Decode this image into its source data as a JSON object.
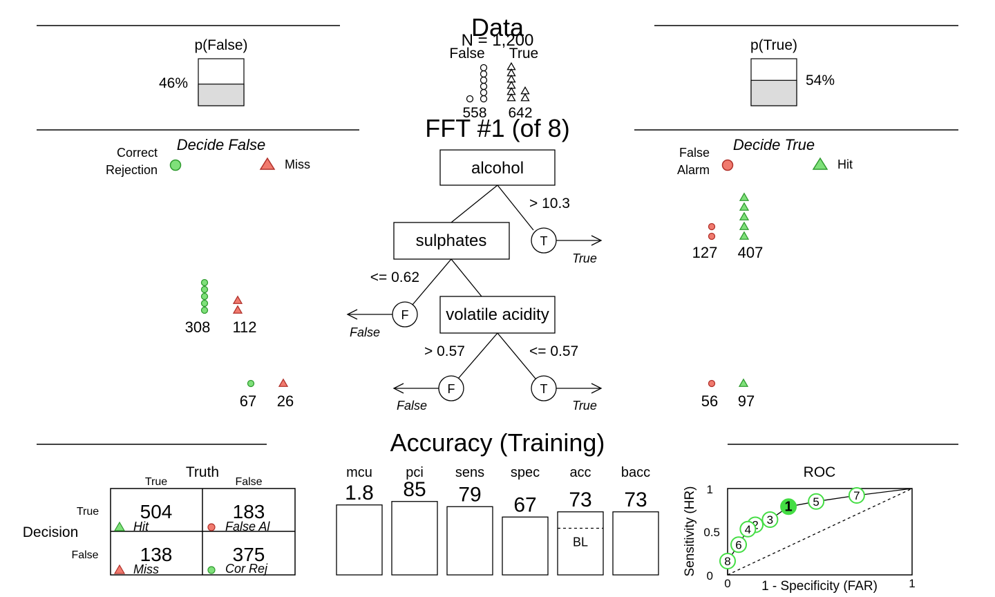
{
  "data_section": {
    "title": "Data",
    "n_label": "N = 1,200",
    "p_false": {
      "label": "p(False)",
      "value_label": "46%",
      "fraction": 0.46
    },
    "p_true": {
      "label": "p(True)",
      "value_label": "54%",
      "fraction": 0.54
    },
    "false_label": "False",
    "true_label": "True",
    "false_count": "558",
    "true_count": "642"
  },
  "tree_section": {
    "title": "FFT #1 (of 8)",
    "decide_false": "Decide False",
    "decide_true": "Decide True",
    "legend": {
      "correct_rejection_line1": "Correct",
      "correct_rejection_line2": "Rejection",
      "miss": "Miss",
      "false_alarm_line1": "False",
      "false_alarm_line2": "Alarm",
      "hit": "Hit"
    },
    "nodes": {
      "alcohol": "alcohol",
      "sulphates": "sulphates",
      "volatile_acidity": "volatile acidity"
    },
    "branches": {
      "alcohol_exit": "> 10.3",
      "sulphates_exit": "<= 0.62",
      "volatile_left": "> 0.57",
      "volatile_right": "<= 0.57"
    },
    "exit_symbols": {
      "true": "T",
      "false": "F"
    },
    "exit_labels": {
      "true": "True",
      "false": "False"
    },
    "level_counts": {
      "alcohol_true": {
        "false_alarm": "127",
        "hit": "407"
      },
      "sulphates_false": {
        "correct_rejection": "308",
        "miss": "112"
      },
      "volatile_false": {
        "correct_rejection": "67",
        "miss": "26"
      },
      "volatile_true": {
        "false_alarm": "56",
        "hit": "97"
      }
    }
  },
  "accuracy_section": {
    "title": "Accuracy (Training)",
    "confusion": {
      "truth_label": "Truth",
      "decision_label": "Decision",
      "col_true": "True",
      "col_false": "False",
      "row_true": "True",
      "row_false": "False",
      "hit": {
        "value": "504",
        "label": "Hit"
      },
      "false_alarm": {
        "value": "183",
        "label": "False Al"
      },
      "miss": {
        "value": "138",
        "label": "Miss"
      },
      "cor_rej": {
        "value": "375",
        "label": "Cor Rej"
      }
    },
    "measures": [
      {
        "name": "mcu",
        "value_label": "1.8",
        "value": 1.8
      },
      {
        "name": "pci",
        "value_label": "85",
        "value": 85
      },
      {
        "name": "sens",
        "value_label": "79",
        "value": 79
      },
      {
        "name": "spec",
        "value_label": "67",
        "value": 67
      },
      {
        "name": "acc",
        "value_label": "73",
        "value": 73,
        "baseline": 54,
        "baseline_label": "BL"
      },
      {
        "name": "bacc",
        "value_label": "73",
        "value": 73
      }
    ],
    "roc": {
      "title": "ROC",
      "xlabel": "1 - Specificity (FAR)",
      "ylabel": "Sensitivity (HR)",
      "xticks": [
        "0",
        "1"
      ],
      "yticks": [
        "0",
        "0.5",
        "1"
      ],
      "selected": "1",
      "points": [
        {
          "label": "1",
          "far": 0.33,
          "hr": 0.79
        },
        {
          "label": "2",
          "far": 0.15,
          "hr": 0.58
        },
        {
          "label": "3",
          "far": 0.23,
          "hr": 0.64
        },
        {
          "label": "4",
          "far": 0.11,
          "hr": 0.53
        },
        {
          "label": "5",
          "far": 0.48,
          "hr": 0.85
        },
        {
          "label": "6",
          "far": 0.06,
          "hr": 0.35
        },
        {
          "label": "7",
          "far": 0.7,
          "hr": 0.92
        },
        {
          "label": "8",
          "far": 0.0,
          "hr": 0.16
        }
      ]
    }
  },
  "colors": {
    "correct_fill": "#7fe07a",
    "correct_stroke": "#2f9a2f",
    "error_fill": "#f07a6e",
    "error_stroke": "#b0302a",
    "bar_fill": "#dcdcdc",
    "roc_green": "#44dd44"
  }
}
